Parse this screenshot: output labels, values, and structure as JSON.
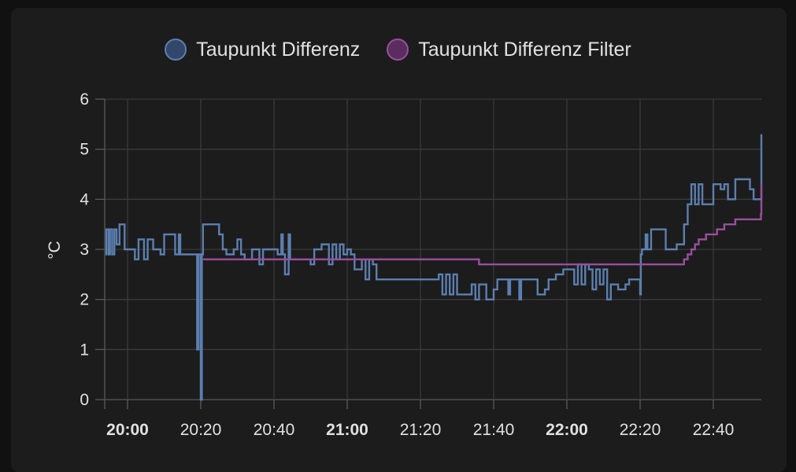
{
  "chart_data": {
    "type": "line",
    "title": "",
    "xlabel": "",
    "ylabel": "°C",
    "ylim": [
      0,
      6
    ],
    "xlim_minutes": [
      -3,
      114
    ],
    "y_ticks": [
      "0",
      "1",
      "2",
      "3",
      "4",
      "5",
      "6"
    ],
    "x_ticks": [
      {
        "label": "20:00",
        "minutes": 0,
        "bold": true
      },
      {
        "label": "20:20",
        "minutes": 20,
        "bold": false
      },
      {
        "label": "20:40",
        "minutes": 40,
        "bold": false
      },
      {
        "label": "21:00",
        "minutes": 60,
        "bold": true
      },
      {
        "label": "21:20",
        "minutes": 80,
        "bold": false
      },
      {
        "label": "21:40",
        "minutes": 100,
        "bold": false
      },
      {
        "label": "22:00",
        "minutes": 120,
        "bold": true
      },
      {
        "label": "22:20",
        "minutes": 140,
        "bold": false
      },
      {
        "label": "22:40",
        "minutes": 160,
        "bold": false
      }
    ],
    "grid": true,
    "legend_position": "top-center",
    "series": [
      {
        "name": "Taupunkt Differenz",
        "color": "#5b7fb0",
        "fill": "#33476a",
        "points": [
          [
            -6,
            2.9
          ],
          [
            -5.8,
            3.4
          ],
          [
            -5.2,
            2.9
          ],
          [
            -4.8,
            3.4
          ],
          [
            -4.2,
            2.9
          ],
          [
            -3.6,
            3.4
          ],
          [
            -3,
            3.1
          ],
          [
            -2.2,
            3.5
          ],
          [
            -0.8,
            3.0
          ],
          [
            1,
            3.0
          ],
          [
            2,
            2.8
          ],
          [
            3,
            3.2
          ],
          [
            4.5,
            2.8
          ],
          [
            5.5,
            3.2
          ],
          [
            7,
            3.0
          ],
          [
            9,
            2.9
          ],
          [
            10,
            3.3
          ],
          [
            13,
            2.9
          ],
          [
            14,
            3.3
          ],
          [
            14.4,
            2.9
          ],
          [
            18,
            2.9
          ],
          [
            19,
            1.0
          ],
          [
            19.4,
            2.9
          ],
          [
            20,
            0.0
          ],
          [
            20.3,
            2.9
          ],
          [
            20.6,
            3.5
          ],
          [
            25,
            3.3
          ],
          [
            26,
            3.0
          ],
          [
            27,
            2.9
          ],
          [
            29,
            3.0
          ],
          [
            30,
            3.2
          ],
          [
            31,
            2.9
          ],
          [
            32,
            2.8
          ],
          [
            34,
            3.0
          ],
          [
            36,
            2.7
          ],
          [
            37,
            3.0
          ],
          [
            40,
            3.0
          ],
          [
            41,
            2.9
          ],
          [
            42,
            3.3
          ],
          [
            42.4,
            2.9
          ],
          [
            43,
            2.5
          ],
          [
            44,
            3.3
          ],
          [
            44.4,
            2.8
          ],
          [
            50,
            2.7
          ],
          [
            51,
            3.0
          ],
          [
            53,
            3.1
          ],
          [
            55,
            2.7
          ],
          [
            56,
            3.1
          ],
          [
            57,
            2.8
          ],
          [
            58,
            3.1
          ],
          [
            59,
            2.9
          ],
          [
            60,
            3.0
          ],
          [
            61,
            2.9
          ],
          [
            62,
            2.6
          ],
          [
            64,
            2.8
          ],
          [
            65,
            2.4
          ],
          [
            66,
            2.8
          ],
          [
            67,
            2.7
          ],
          [
            68,
            2.4
          ],
          [
            70,
            2.4
          ],
          [
            85,
            2.5
          ],
          [
            86,
            2.1
          ],
          [
            87,
            2.5
          ],
          [
            88,
            2.1
          ],
          [
            89,
            2.5
          ],
          [
            90,
            2.1
          ],
          [
            94,
            2.3
          ],
          [
            95,
            2.0
          ],
          [
            96,
            2.3
          ],
          [
            98,
            2.0
          ],
          [
            100,
            2.2
          ],
          [
            101,
            2.4
          ],
          [
            104,
            2.1
          ],
          [
            104.5,
            2.4
          ],
          [
            107,
            2.0
          ],
          [
            107.5,
            2.4
          ],
          [
            112,
            2.1
          ],
          [
            114,
            2.2
          ],
          [
            115,
            2.4
          ],
          [
            117,
            2.5
          ],
          [
            118,
            2.5
          ],
          [
            119,
            2.6
          ],
          [
            120,
            2.6
          ],
          [
            122,
            2.3
          ],
          [
            123,
            2.7
          ],
          [
            124,
            2.3
          ],
          [
            125,
            2.7
          ],
          [
            126,
            2.6
          ],
          [
            127,
            2.2
          ],
          [
            128,
            2.6
          ],
          [
            129,
            2.3
          ],
          [
            130,
            2.6
          ],
          [
            131,
            2.0
          ],
          [
            132,
            2.3
          ],
          [
            134,
            2.2
          ],
          [
            136,
            2.3
          ],
          [
            137,
            2.4
          ],
          [
            139,
            2.4
          ],
          [
            140,
            2.1
          ],
          [
            140.2,
            2.9
          ],
          [
            140.5,
            3.0
          ],
          [
            141,
            3.0
          ],
          [
            141.5,
            3.3
          ],
          [
            142,
            3.0
          ],
          [
            143,
            3.4
          ],
          [
            147,
            3.0
          ],
          [
            150,
            3.1
          ],
          [
            152,
            3.5
          ],
          [
            153,
            3.9
          ],
          [
            154,
            4.3
          ],
          [
            155,
            3.9
          ],
          [
            156,
            4.3
          ],
          [
            157,
            3.9
          ],
          [
            160,
            4.3
          ],
          [
            162,
            4.2
          ],
          [
            163,
            4.3
          ],
          [
            164,
            4.0
          ],
          [
            166,
            4.4
          ],
          [
            170,
            4.2
          ],
          [
            171,
            4.0
          ],
          [
            173,
            4.0
          ],
          [
            174,
            4.6
          ],
          [
            174.5,
            5.3
          ],
          [
            175,
            4.9
          ],
          [
            175.5,
            5.3
          ],
          [
            176,
            4.9
          ],
          [
            177,
            5.0
          ],
          [
            184,
            5.0
          ]
        ]
      },
      {
        "name": "Taupunkt Differenz Filter",
        "color": "#9b4e9f",
        "fill": "#5a2d5e",
        "points": [
          [
            20.6,
            2.8
          ],
          [
            84,
            2.8
          ],
          [
            85,
            2.8
          ],
          [
            91,
            2.8
          ],
          [
            95,
            2.8
          ],
          [
            96,
            2.7
          ],
          [
            122,
            2.7
          ],
          [
            140,
            2.7
          ],
          [
            142,
            2.7
          ],
          [
            150,
            2.7
          ],
          [
            152,
            2.8
          ],
          [
            153,
            2.9
          ],
          [
            154,
            3.0
          ],
          [
            155,
            3.1
          ],
          [
            156,
            3.2
          ],
          [
            158,
            3.3
          ],
          [
            161,
            3.4
          ],
          [
            163,
            3.5
          ],
          [
            166,
            3.6
          ],
          [
            172,
            3.6
          ],
          [
            173,
            3.7
          ],
          [
            173.5,
            3.8
          ],
          [
            174,
            3.9
          ],
          [
            174.5,
            4.0
          ],
          [
            175,
            4.1
          ],
          [
            175.5,
            4.2
          ],
          [
            176,
            4.3
          ],
          [
            178,
            4.3
          ]
        ]
      }
    ]
  }
}
